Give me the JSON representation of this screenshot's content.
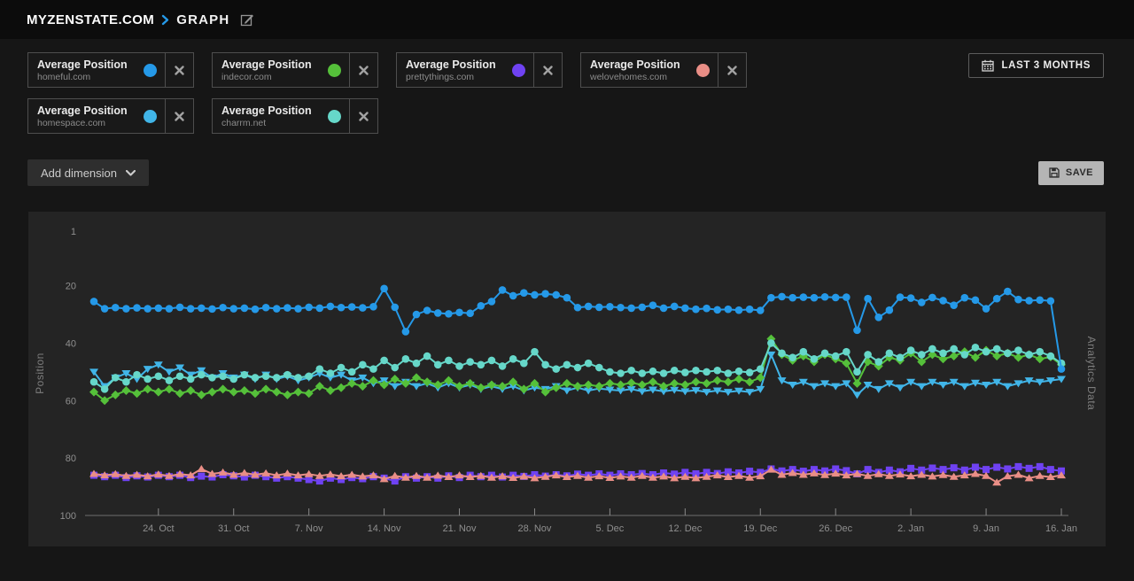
{
  "header": {
    "site": "MYZENSTATE.COM",
    "page": "GRAPH"
  },
  "cards": [
    {
      "title": "Average Position",
      "domain": "homeful.com",
      "color": "#2599e8"
    },
    {
      "title": "Average Position",
      "domain": "indecor.com",
      "color": "#55c03a"
    },
    {
      "title": "Average Position",
      "domain": "prettythings.com",
      "color": "#6f42f2"
    },
    {
      "title": "Average Position",
      "domain": "welovehomes.com",
      "color": "#e98e86"
    },
    {
      "title": "Average Position",
      "domain": "homespace.com",
      "color": "#41b5e8"
    },
    {
      "title": "Average Position",
      "domain": "charrm.net",
      "color": "#66d7c9"
    }
  ],
  "toolbar": {
    "date_range": "LAST 3 MONTHS",
    "add_dimension": "Add dimension",
    "save": "SAVE"
  },
  "chart_data": {
    "type": "line",
    "ylabel": "Position",
    "ylabel_right": "Analytics Data",
    "y_inverted": true,
    "ylim": [
      1,
      100
    ],
    "yticks": [
      1,
      20,
      40,
      60,
      80,
      100
    ],
    "grid": false,
    "n_points": 91,
    "x_ticks": [
      {
        "index": 6,
        "label": "24. Oct"
      },
      {
        "index": 13,
        "label": "31. Oct"
      },
      {
        "index": 20,
        "label": "7. Nov"
      },
      {
        "index": 27,
        "label": "14. Nov"
      },
      {
        "index": 34,
        "label": "21. Nov"
      },
      {
        "index": 41,
        "label": "28. Nov"
      },
      {
        "index": 48,
        "label": "5. Dec"
      },
      {
        "index": 55,
        "label": "12. Dec"
      },
      {
        "index": 62,
        "label": "19. Dec"
      },
      {
        "index": 69,
        "label": "26. Dec"
      },
      {
        "index": 76,
        "label": "2. Jan"
      },
      {
        "index": 83,
        "label": "9. Jan"
      },
      {
        "index": 90,
        "label": "16. Jan"
      }
    ],
    "series": [
      {
        "name": "prettythings.com",
        "metric": "Average Position",
        "color": "#6f42f2",
        "marker": "square",
        "values": [
          86,
          86.5,
          86,
          86.8,
          86.2,
          86.6,
          86,
          86.5,
          86,
          86.8,
          86.3,
          86.6,
          85.8,
          86.2,
          86.6,
          86,
          86.5,
          87,
          86.5,
          87,
          87.5,
          88,
          87,
          87.5,
          86.8,
          87.2,
          86.5,
          87,
          88,
          86.5,
          87,
          86.5,
          87,
          86.2,
          86.8,
          86,
          86.5,
          86,
          86.6,
          86,
          86.4,
          85.8,
          86.3,
          85.8,
          86.2,
          85.6,
          86,
          85.5,
          86,
          85.5,
          85.8,
          85.4,
          85.8,
          85.2,
          85.6,
          85,
          85.5,
          85,
          85.4,
          84.8,
          85.2,
          84.6,
          85,
          83.8,
          84.5,
          84,
          84.6,
          84,
          84.5,
          83.8,
          84.4,
          85.5,
          84,
          85,
          84.2,
          84.8,
          83.6,
          84.2,
          83.5,
          84,
          83.4,
          84.2,
          83.2,
          84,
          83.2,
          83.8,
          83,
          83.6,
          83,
          84,
          84.5
        ]
      },
      {
        "name": "welovehomes.com",
        "metric": "Average Position",
        "color": "#e98e86",
        "marker": "triangle-up",
        "values": [
          85.5,
          86,
          85.6,
          86.2,
          85.8,
          86.3,
          85.7,
          86.2,
          85.6,
          86,
          83.8,
          85.5,
          85,
          85.8,
          85.2,
          85.8,
          85.3,
          86,
          85.4,
          86,
          85.6,
          86.2,
          85.7,
          86.3,
          85.8,
          86.4,
          86,
          87.3,
          86.2,
          86.8,
          86.2,
          86.8,
          86.1,
          86.6,
          86,
          86.6,
          86.2,
          86.8,
          86.3,
          86.9,
          86.4,
          87,
          86.5,
          86,
          86.6,
          86.2,
          86.8,
          86.3,
          86.9,
          86.4,
          86.8,
          86.2,
          86.8,
          86.4,
          87,
          86.5,
          87,
          86.5,
          86,
          86.6,
          86.2,
          86.8,
          86.3,
          84,
          85.8,
          85.2,
          85.8,
          85.3,
          85.9,
          85.4,
          86,
          85.5,
          86.2,
          85.6,
          86.2,
          85.7,
          86.3,
          85.8,
          86.4,
          85.9,
          86.5,
          86,
          85.5,
          86.2,
          88.5,
          86.3,
          85.8,
          87,
          86.2,
          86.6,
          86
        ]
      },
      {
        "name": "homespace.com",
        "metric": "Average Position",
        "color": "#41b5e8",
        "marker": "triangle-down",
        "values": [
          50,
          55,
          52,
          50.5,
          52.5,
          49,
          47.5,
          50,
          48.5,
          51,
          49.5,
          52,
          50.5,
          52,
          51,
          52.5,
          51,
          52.5,
          51.5,
          53,
          52,
          50.5,
          52,
          51,
          53,
          52,
          54,
          53,
          55,
          53.5,
          55,
          54,
          55.5,
          54,
          55.5,
          54.5,
          56,
          55,
          56,
          55,
          56.5,
          55.5,
          56,
          55,
          56.5,
          55.5,
          56.5,
          55.8,
          56.2,
          56.5,
          56,
          56.8,
          56.2,
          56.8,
          56.3,
          56.8,
          56.4,
          57,
          56.5,
          57,
          56.6,
          57,
          56,
          44,
          53,
          54.5,
          53.5,
          55,
          54,
          55,
          54,
          58,
          54.5,
          56,
          54,
          55.5,
          53.5,
          55,
          53.5,
          54.5,
          53.5,
          55,
          53.8,
          54.5,
          53.5,
          55,
          54,
          53,
          53.5,
          53,
          52.5
        ]
      },
      {
        "name": "indecor.com",
        "metric": "Average Position",
        "color": "#55c03a",
        "marker": "diamond",
        "values": [
          57,
          60,
          58,
          56.5,
          57.5,
          56,
          57,
          56,
          57.5,
          56.5,
          58,
          57,
          56,
          57,
          56.5,
          57.5,
          56,
          57,
          58,
          57,
          57.5,
          55,
          56.5,
          55.5,
          54,
          55,
          53,
          54.5,
          52.5,
          54,
          52,
          53.5,
          54.5,
          53,
          55,
          54,
          55.5,
          54.5,
          55,
          53.5,
          56,
          54,
          57,
          55.5,
          54,
          55,
          54.5,
          55,
          54,
          54.5,
          53.8,
          54.5,
          53.5,
          55,
          54,
          54.5,
          53.5,
          54,
          53,
          53.5,
          52.5,
          53.5,
          52,
          38.5,
          44,
          46,
          44.5,
          46.5,
          44,
          45.5,
          47,
          54,
          46.5,
          48,
          45,
          46,
          43.5,
          46.5,
          44,
          45.5,
          44.5,
          43,
          45,
          42.5,
          44.5,
          43.5,
          45,
          44,
          45.5,
          44.8,
          47.5
        ]
      },
      {
        "name": "charrm.net",
        "metric": "Average Position",
        "color": "#66d7c9",
        "marker": "circle",
        "values": [
          53.5,
          56,
          52,
          53.5,
          51,
          52.5,
          51.5,
          53,
          51.5,
          52.5,
          51,
          52,
          51.5,
          52.5,
          51,
          52,
          51.5,
          52,
          51,
          52,
          51.5,
          49,
          50.5,
          48.5,
          50,
          47.5,
          49,
          46,
          48.5,
          45.5,
          47,
          44.5,
          47.5,
          46,
          48,
          46.5,
          47.5,
          46,
          48,
          45.5,
          47,
          43,
          47.5,
          49,
          47.5,
          48.5,
          47,
          48.5,
          50,
          50.5,
          49.5,
          50.5,
          49.8,
          50.5,
          49.5,
          50.2,
          49.5,
          50,
          49.5,
          50.5,
          49.8,
          50.2,
          49,
          40,
          43.5,
          45,
          43,
          45.5,
          43.5,
          44.5,
          43,
          50,
          44,
          46.5,
          43.5,
          45,
          42.5,
          44,
          42,
          43.5,
          42,
          44,
          41.5,
          43,
          42,
          43.5,
          42.5,
          44,
          43,
          44.5,
          47
        ]
      },
      {
        "name": "homeful.com",
        "metric": "Average Position",
        "color": "#2599e8",
        "marker": "circle",
        "values": [
          25.5,
          28,
          27.6,
          28,
          27.7,
          28,
          27.8,
          28,
          27.5,
          28,
          27.8,
          28.1,
          27.6,
          28,
          27.8,
          28.2,
          27.6,
          28,
          27.7,
          28,
          27.5,
          27.8,
          27.2,
          27.6,
          27.4,
          27.7,
          27.3,
          21,
          27.5,
          36,
          30,
          28.6,
          29.5,
          29.8,
          29.3,
          29.6,
          27,
          25.5,
          21.5,
          23.5,
          22.5,
          23.2,
          22.8,
          23.2,
          24.2,
          27.6,
          27.2,
          27.5,
          27.3,
          27.6,
          27.8,
          27.5,
          26.8,
          27.8,
          27.2,
          27.8,
          28.2,
          27.9,
          28.4,
          28.2,
          28.5,
          28.2,
          28.6,
          24.2,
          23.8,
          24.2,
          24,
          24.2,
          23.9,
          24.1,
          24,
          35.5,
          24.5,
          31,
          28.5,
          24,
          24.3,
          25.8,
          24.1,
          25.2,
          26.8,
          24.2,
          25,
          28,
          24.5,
          22,
          24.8,
          25.2,
          25,
          25.3,
          49
        ]
      }
    ]
  }
}
